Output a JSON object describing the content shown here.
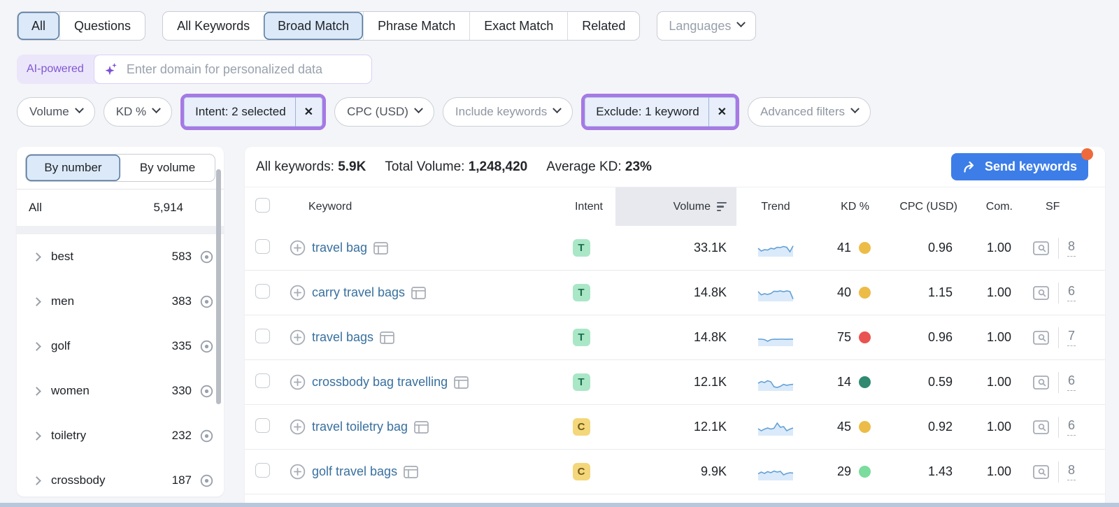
{
  "icons": {
    "close": "✕"
  },
  "colors": {
    "accent_blue": "#3c7de8",
    "highlight_purple": "#a679e4",
    "selected_bg": "#dce9f8",
    "link_blue": "#38709f",
    "orange_dot": "#ee6a3c",
    "spark_line": "#64a0d6",
    "spark_fill": "#daeafa"
  },
  "top_tabs": {
    "group1": [
      {
        "label": "All",
        "selected": true
      },
      {
        "label": "Questions",
        "selected": false
      }
    ],
    "group2": [
      {
        "label": "All Keywords",
        "selected": false
      },
      {
        "label": "Broad Match",
        "selected": true
      },
      {
        "label": "Phrase Match",
        "selected": false
      },
      {
        "label": "Exact Match",
        "selected": false
      },
      {
        "label": "Related",
        "selected": false
      }
    ],
    "languages_label": "Languages"
  },
  "ai_bar": {
    "badge": "AI-powered",
    "placeholder": "Enter domain for personalized data"
  },
  "filters": [
    {
      "label": "Volume"
    },
    {
      "label": "KD %"
    },
    {
      "label": "Intent: 2 selected"
    },
    {
      "label": "CPC (USD)"
    },
    {
      "label": "Include keywords"
    },
    {
      "label": "Exclude: 1 keyword"
    },
    {
      "label": "Advanced filters"
    }
  ],
  "sidebar": {
    "toggle": [
      {
        "label": "By number",
        "selected": true
      },
      {
        "label": "By volume",
        "selected": false
      }
    ],
    "all_row": {
      "label": "All",
      "count": "5,914"
    },
    "groups": [
      {
        "label": "best",
        "count": "583"
      },
      {
        "label": "men",
        "count": "383"
      },
      {
        "label": "golf",
        "count": "335"
      },
      {
        "label": "women",
        "count": "330"
      },
      {
        "label": "toiletry",
        "count": "232"
      },
      {
        "label": "crossbody",
        "count": "187"
      }
    ]
  },
  "summary": {
    "all_keywords_label": "All keywords:",
    "all_keywords_value": "5.9K",
    "total_volume_label": "Total Volume:",
    "total_volume_value": "1,248,420",
    "average_kd_label": "Average KD:",
    "average_kd_value": "23%",
    "send_button": "Send keywords"
  },
  "intent_styles": {
    "T": {
      "bg": "#a9e7c7",
      "fg": "#1b6d4c"
    },
    "C": {
      "bg": "#f4d77b",
      "fg": "#6d591b"
    }
  },
  "table": {
    "headers": {
      "keyword": "Keyword",
      "intent": "Intent",
      "volume": "Volume",
      "trend": "Trend",
      "kd": "KD %",
      "cpc": "CPC (USD)",
      "com": "Com.",
      "sf": "SF"
    },
    "rows": [
      {
        "keyword": "travel bag",
        "intent": "T",
        "volume": "33.1K",
        "kd": "41",
        "kd_color": "#ecbc47",
        "cpc": "0.96",
        "com": "1.00",
        "sf": "8",
        "trend": [
          0.55,
          0.35,
          0.45,
          0.42,
          0.55,
          0.5,
          0.62,
          0.6,
          0.68,
          0.62,
          0.3,
          0.72
        ]
      },
      {
        "keyword": "carry travel bags",
        "intent": "T",
        "volume": "14.8K",
        "kd": "40",
        "kd_color": "#ecbc47",
        "cpc": "1.15",
        "com": "1.00",
        "sf": "6",
        "trend": [
          0.65,
          0.42,
          0.5,
          0.45,
          0.52,
          0.68,
          0.66,
          0.7,
          0.64,
          0.7,
          0.66,
          0.12
        ]
      },
      {
        "keyword": "travel bags",
        "intent": "T",
        "volume": "14.8K",
        "kd": "75",
        "kd_color": "#e95450",
        "cpc": "0.96",
        "com": "1.00",
        "sf": "7",
        "trend": [
          0.45,
          0.45,
          0.42,
          0.3,
          0.42,
          0.45,
          0.44,
          0.45,
          0.45,
          0.44,
          0.45,
          0.45
        ]
      },
      {
        "keyword": "crossbody bag travelling",
        "intent": "T",
        "volume": "12.1K",
        "kd": "14",
        "kd_color": "#2f8a71",
        "cpc": "0.59",
        "com": "1.00",
        "sf": "6",
        "trend": [
          0.5,
          0.62,
          0.55,
          0.68,
          0.6,
          0.25,
          0.2,
          0.28,
          0.42,
          0.35,
          0.4,
          0.42
        ]
      },
      {
        "keyword": "travel toiletry bag",
        "intent": "C",
        "volume": "12.1K",
        "kd": "45",
        "kd_color": "#ecbc47",
        "cpc": "0.92",
        "com": "1.00",
        "sf": "6",
        "trend": [
          0.45,
          0.3,
          0.42,
          0.5,
          0.42,
          0.48,
          0.85,
          0.55,
          0.6,
          0.3,
          0.42,
          0.5
        ]
      },
      {
        "keyword": "golf travel bags",
        "intent": "C",
        "volume": "9.9K",
        "kd": "29",
        "kd_color": "#7adc9d",
        "cpc": "1.43",
        "com": "1.00",
        "sf": "8",
        "trend": [
          0.42,
          0.55,
          0.45,
          0.58,
          0.5,
          0.62,
          0.55,
          0.6,
          0.35,
          0.45,
          0.5,
          0.48
        ]
      }
    ]
  }
}
